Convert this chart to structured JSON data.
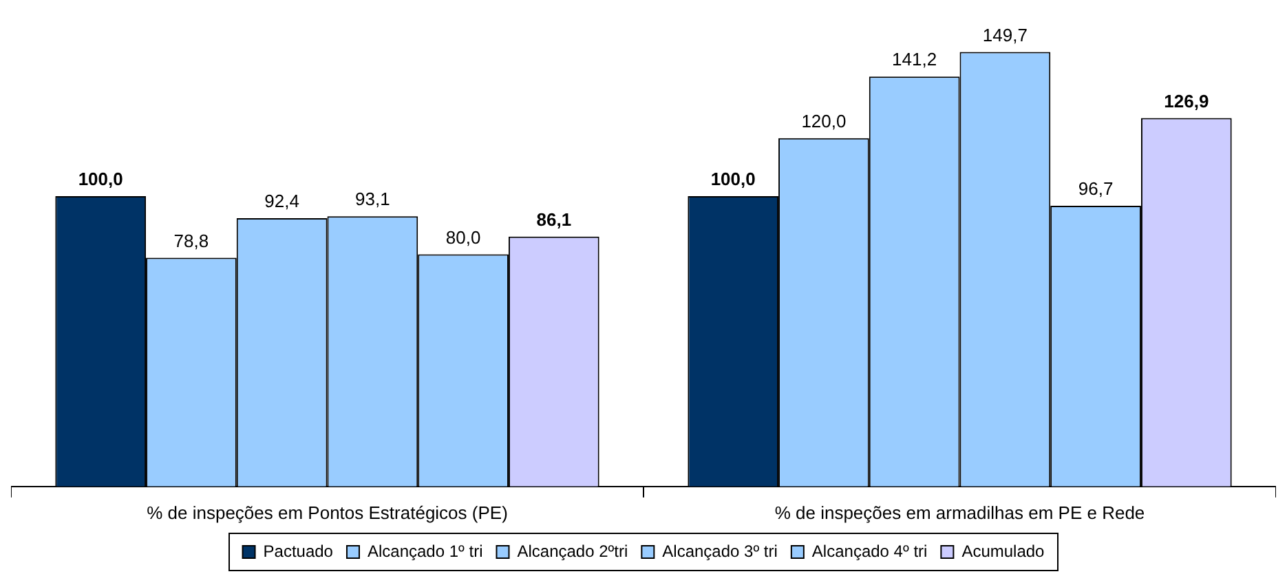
{
  "chart_data": {
    "type": "bar",
    "categories": [
      "% de inspeções em Pontos Estratégicos (PE)",
      "% de inspeções em armadilhas em PE e Rede"
    ],
    "series": [
      {
        "name": "Pactuado",
        "color": "#003366",
        "values": [
          100.0,
          100.0
        ],
        "value_labels": [
          "100,0",
          "100,0"
        ]
      },
      {
        "name": "Alcançado 1º tri",
        "color": "#99ccff",
        "values": [
          78.8,
          120.0
        ],
        "value_labels": [
          "78,8",
          "120,0"
        ]
      },
      {
        "name": "Alcançado 2ºtri",
        "color": "#99ccff",
        "values": [
          92.4,
          141.2
        ],
        "value_labels": [
          "92,4",
          "141,2"
        ]
      },
      {
        "name": "Alcançado 3º tri",
        "color": "#99ccff",
        "values": [
          93.1,
          149.7
        ],
        "value_labels": [
          "93,1",
          "149,7"
        ]
      },
      {
        "name": "Alcançado 4º tri",
        "color": "#99ccff",
        "values": [
          80.0,
          96.7
        ],
        "value_labels": [
          "80,0",
          "96,7"
        ]
      },
      {
        "name": "Acumulado",
        "color": "#ccccff",
        "values": [
          86.1,
          126.9
        ],
        "value_labels": [
          "86,1",
          "126,9"
        ]
      }
    ],
    "grid": false,
    "legend": "bottom"
  }
}
